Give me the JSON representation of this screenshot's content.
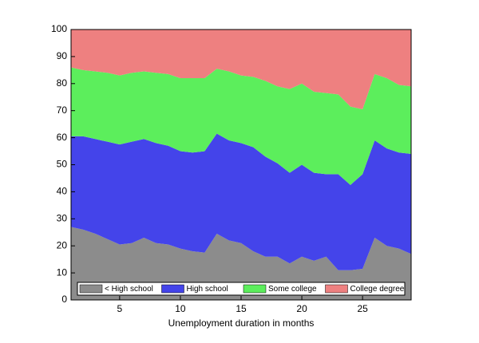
{
  "chart_data": {
    "type": "stacked-area",
    "x_label": "Unemployment duration in months",
    "x": [
      1,
      2,
      3,
      4,
      5,
      6,
      7,
      8,
      9,
      10,
      11,
      12,
      13,
      14,
      15,
      16,
      17,
      18,
      19,
      20,
      21,
      22,
      23,
      24,
      25,
      26,
      27,
      28,
      29
    ],
    "series": [
      {
        "name": "< High school",
        "color": "#8c8c8c",
        "values": [
          27,
          26,
          24.5,
          22.5,
          20.5,
          21,
          23,
          21,
          20.5,
          19,
          18,
          17.5,
          24.5,
          22,
          21,
          18,
          16,
          16,
          13.5,
          16,
          14.5,
          16,
          11,
          11,
          11.5,
          23,
          20,
          19,
          17
        ]
      },
      {
        "name": "High school",
        "color": "#4444ea",
        "values": [
          33.5,
          34.5,
          35,
          36,
          37,
          37.5,
          36.5,
          37,
          36.5,
          36,
          36.5,
          37.5,
          37,
          37,
          37,
          38.5,
          37,
          34.5,
          33.5,
          34,
          32.5,
          30.5,
          35.5,
          31.5,
          35,
          36,
          36,
          35.5,
          37
        ]
      },
      {
        "name": "Some college",
        "color": "#5cee5c",
        "values": [
          25.5,
          24.5,
          25,
          25.5,
          25.5,
          25.5,
          25,
          26,
          26.5,
          27,
          27.5,
          27,
          24,
          25.5,
          25,
          26,
          28,
          28.5,
          31,
          30,
          30,
          30,
          29.5,
          29,
          24,
          24.5,
          26,
          25,
          25
        ]
      },
      {
        "name": "College degree",
        "color": "#ee8080",
        "values": [
          14,
          15,
          15.5,
          16,
          17,
          16,
          15.5,
          16,
          16.5,
          18,
          18,
          18,
          14.5,
          15.5,
          17,
          17.5,
          19,
          21,
          22,
          20,
          23,
          23.5,
          24,
          28.5,
          29.5,
          16.5,
          18,
          20.5,
          21
        ]
      }
    ],
    "xlim": [
      1,
      29
    ],
    "xticks": [
      5,
      10,
      15,
      20,
      25
    ],
    "ylim": [
      0,
      100
    ],
    "yticks": [
      0,
      10,
      20,
      30,
      40,
      50,
      60,
      70,
      80,
      90,
      100
    ],
    "legend": "lower center"
  }
}
